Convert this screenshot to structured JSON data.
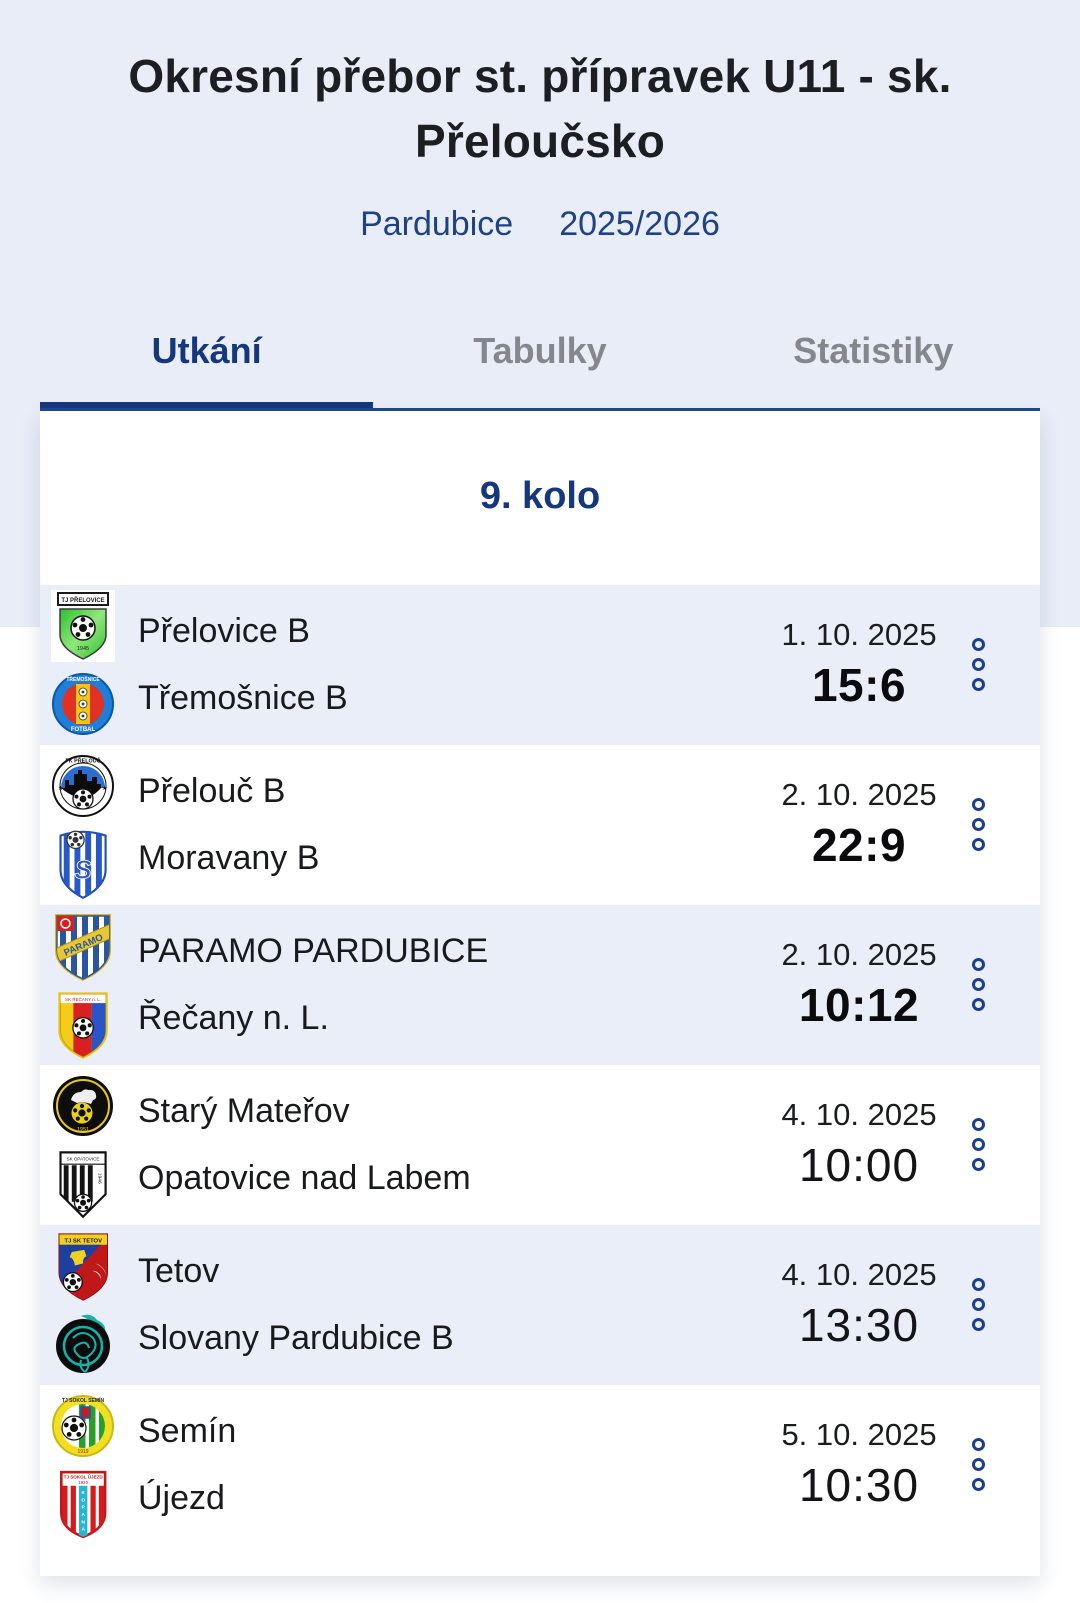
{
  "header": {
    "title": "Okresní přebor st. přípravek U11 - sk. Přeloučsko",
    "region": "Pardubice",
    "season": "2025/2026"
  },
  "tabs": [
    {
      "label": "Utkání",
      "active": true
    },
    {
      "label": "Tabulky",
      "active": false
    },
    {
      "label": "Statistiky",
      "active": false
    }
  ],
  "round": {
    "title": "9. kolo"
  },
  "matches": [
    {
      "home": "Přelovice B",
      "away": "Třemošnice B",
      "home_logo": "prelovice",
      "away_logo": "tremosnice",
      "date": "1. 10. 2025",
      "result": "15:6",
      "played": true
    },
    {
      "home": "Přelouč B",
      "away": "Moravany B",
      "home_logo": "prelouc",
      "away_logo": "moravany",
      "date": "2. 10. 2025",
      "result": "22:9",
      "played": true
    },
    {
      "home": "PARAMO PARDUBICE",
      "away": "Řečany n. L.",
      "home_logo": "paramo",
      "away_logo": "recany",
      "date": "2. 10. 2025",
      "result": "10:12",
      "played": true
    },
    {
      "home": "Starý Mateřov",
      "away": "Opatovice nad Labem",
      "home_logo": "stary-materov",
      "away_logo": "opatovice",
      "date": "4. 10. 2025",
      "result": "10:00",
      "played": false
    },
    {
      "home": "Tetov",
      "away": "Slovany Pardubice B",
      "home_logo": "tetov",
      "away_logo": "slovany",
      "date": "4. 10. 2025",
      "result": "13:30",
      "played": false
    },
    {
      "home": "Semín",
      "away": "Újezd",
      "home_logo": "semin",
      "away_logo": "ujezd",
      "date": "5. 10. 2025",
      "result": "10:30",
      "played": false
    }
  ],
  "icons": {
    "match_menu": "kebab-dots-icon"
  },
  "colors": {
    "accent_navy": "#15377e",
    "link_blue": "#1e4383",
    "inactive_tab_gray": "#85878c",
    "row_alt_blue": "#e9eef8",
    "header_band_blue": "#e9edf8",
    "dots_blue": "#1b3f8f"
  }
}
